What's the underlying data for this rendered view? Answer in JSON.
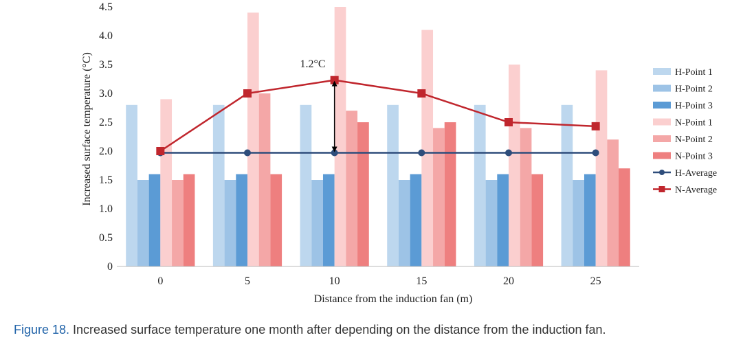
{
  "caption": {
    "label": "Figure 18.",
    "text": " Increased surface temperature one month after depending on the distance from the induction fan."
  },
  "chart_data": {
    "type": "bar",
    "xlabel": "Distance from the induction fan (m)",
    "ylabel": "Increased surface temperature (°C)",
    "ylim": [
      0,
      4.5
    ],
    "yticks": [
      "0",
      "0.5",
      "1.0",
      "1.5",
      "2.0",
      "2.5",
      "3.0",
      "3.5",
      "4.0",
      "4.5"
    ],
    "categories": [
      "0",
      "5",
      "10",
      "15",
      "20",
      "25"
    ],
    "grid": false,
    "legend_position": "right",
    "bar_series": [
      {
        "name": "H-Point 1",
        "color": "#bdd7ee",
        "values": [
          2.8,
          2.8,
          2.8,
          2.8,
          2.8,
          2.8
        ]
      },
      {
        "name": "H-Point 2",
        "color": "#9dc3e6",
        "values": [
          1.5,
          1.5,
          1.5,
          1.5,
          1.5,
          1.5
        ]
      },
      {
        "name": "H-Point 3",
        "color": "#5b9bd5",
        "values": [
          1.6,
          1.6,
          1.6,
          1.6,
          1.6,
          1.6
        ]
      },
      {
        "name": "N-Point 1",
        "color": "#fbcfcf",
        "values": [
          2.9,
          4.4,
          4.5,
          4.1,
          3.5,
          3.4
        ]
      },
      {
        "name": "N-Point 2",
        "color": "#f4a7a7",
        "values": [
          1.5,
          3.0,
          2.7,
          2.4,
          2.4,
          2.2
        ]
      },
      {
        "name": "N-Point 3",
        "color": "#ee7f7f",
        "values": [
          1.6,
          1.6,
          2.5,
          2.5,
          1.6,
          1.7
        ]
      }
    ],
    "line_series": [
      {
        "name": "H-Average",
        "color": "#2e4d7b",
        "marker": "circle",
        "values": [
          1.97,
          1.97,
          1.97,
          1.97,
          1.97,
          1.97
        ]
      },
      {
        "name": "N-Average",
        "color": "#c0262d",
        "marker": "square",
        "values": [
          2.0,
          3.0,
          3.23,
          3.0,
          2.5,
          2.43
        ]
      }
    ],
    "annotation": {
      "text": "1.2°C",
      "category": "10",
      "from": 1.97,
      "to": 3.23
    }
  }
}
